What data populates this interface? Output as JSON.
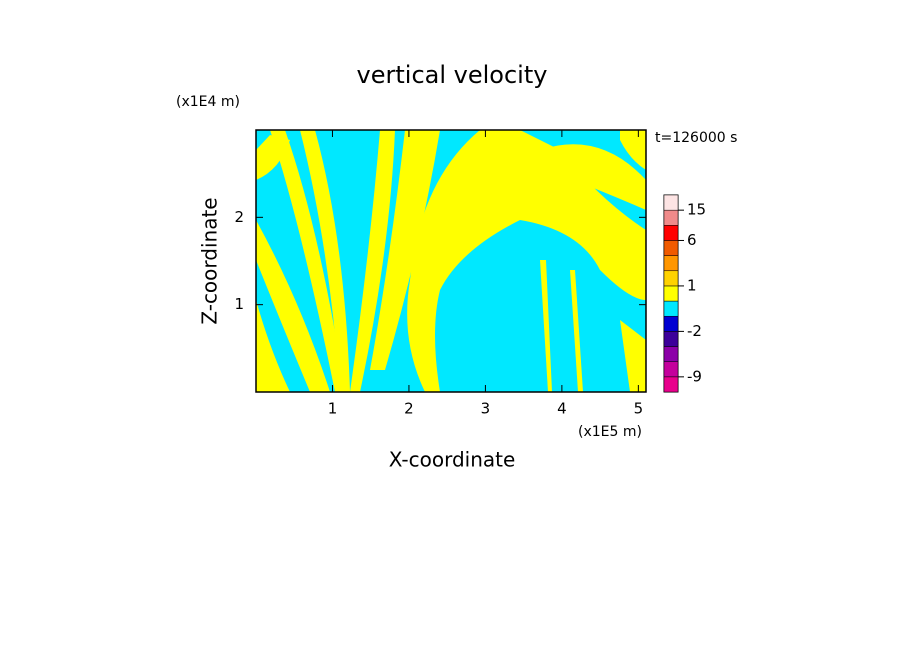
{
  "chart_data": {
    "type": "contour",
    "title": "vertical velocity",
    "xlabel": "X-coordinate",
    "ylabel": "Z-coordinate",
    "xunit": "(x1E5 m)",
    "yunit": "(x1E4 m)",
    "annotation": "t=126000 s",
    "xlim": [
      0,
      5.1
    ],
    "xticks": [
      1,
      2,
      3,
      4,
      5
    ],
    "ylim": [
      0,
      3
    ],
    "yticks": [
      1,
      2
    ],
    "colorbar": {
      "levels": [
        -12,
        -9,
        -6,
        -4,
        -2,
        -1,
        0,
        1,
        2,
        4,
        6,
        10,
        15,
        20
      ],
      "colors": [
        "#e8008c",
        "#c4009c",
        "#8c00a8",
        "#3c009a",
        "#0000d2",
        "#00e8ff",
        "#ffff00",
        "#ffd200",
        "#ff9600",
        "#f05a00",
        "#ff0000",
        "#f08a8a",
        "#fde4e4"
      ],
      "ticks": [
        -9,
        -2,
        1,
        6,
        15
      ]
    }
  }
}
